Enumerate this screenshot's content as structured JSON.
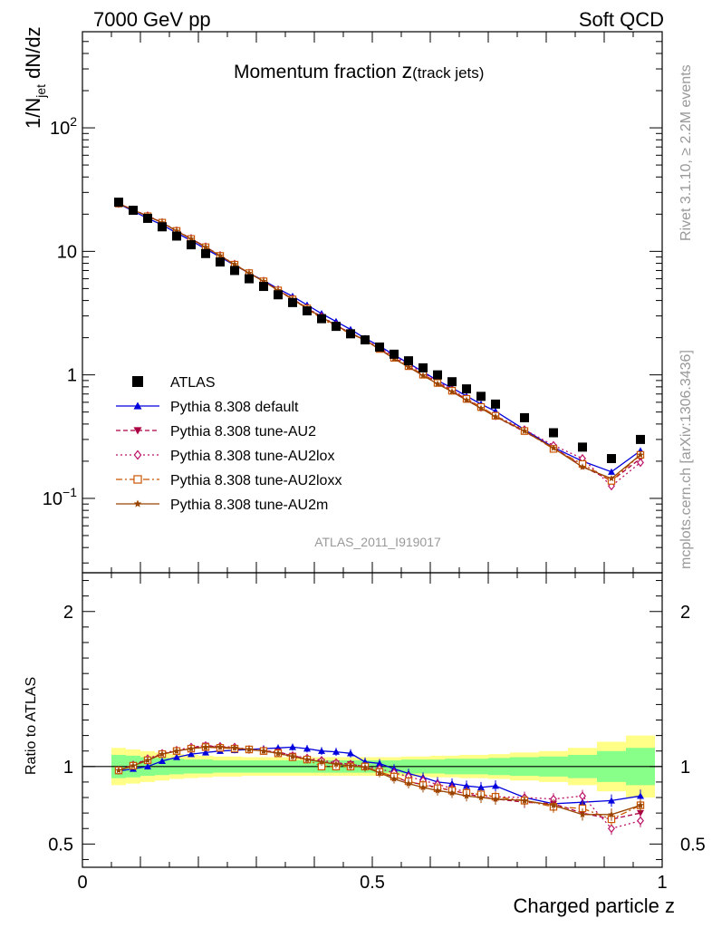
{
  "header": {
    "left": "7000 GeV pp",
    "right": "Soft QCD"
  },
  "side_texts": {
    "rivet": "Rivet 3.1.10, ≥ 2.2M events",
    "mcplots": "mcplots.cern.ch [arXiv:1306.3436]"
  },
  "chart_data": {
    "type": "line",
    "title_main": "Momentum fraction ",
    "title_z": "z",
    "title_sub": "(track jets)",
    "analysis_label": "ATLAS_2011_I919017",
    "ylabel_top": "1/N_jet dN/dz",
    "ylabel_bottom": "Ratio to ATLAS",
    "xlabel": "Charged particle z",
    "xlim": [
      0,
      1
    ],
    "ylim_top": [
      0.025,
      600
    ],
    "ylim_bottom": [
      0.35,
      2.25
    ],
    "log_y_top": true,
    "x_ticks": [
      {
        "v": 0,
        "label": "0"
      },
      {
        "v": 0.5,
        "label": "0.5"
      },
      {
        "v": 1,
        "label": "1"
      }
    ],
    "y_ticks_top": [
      {
        "v": 0.1,
        "base": "10",
        "exp": "−1"
      },
      {
        "v": 1,
        "base": "1",
        "exp": ""
      },
      {
        "v": 10,
        "base": "10",
        "exp": ""
      },
      {
        "v": 100,
        "base": "10",
        "exp": "2"
      }
    ],
    "y_ticks_bottom": [
      {
        "v": 0.5,
        "label": "0.5"
      },
      {
        "v": 1,
        "label": "1"
      },
      {
        "v": 2,
        "label": "2"
      }
    ],
    "x": [
      0.0625,
      0.0875,
      0.1125,
      0.1375,
      0.1625,
      0.1875,
      0.2125,
      0.2375,
      0.2625,
      0.2875,
      0.3125,
      0.3375,
      0.3625,
      0.3875,
      0.4125,
      0.4375,
      0.4625,
      0.4875,
      0.5125,
      0.5375,
      0.5625,
      0.5875,
      0.6125,
      0.6375,
      0.6625,
      0.6875,
      0.7125,
      0.7625,
      0.8125,
      0.8625,
      0.9125,
      0.9625
    ],
    "data": {
      "name": "ATLAS",
      "values": [
        25,
        21.5,
        18.5,
        15.8,
        13.3,
        11.3,
        9.6,
        8.2,
        7.0,
        6.0,
        5.2,
        4.45,
        3.85,
        3.3,
        2.85,
        2.47,
        2.15,
        1.92,
        1.68,
        1.47,
        1.3,
        1.14,
        1.0,
        0.88,
        0.77,
        0.67,
        0.58,
        0.45,
        0.34,
        0.26,
        0.21,
        0.3
      ],
      "band_inner": [
        0.075,
        0.07,
        0.06,
        0.055,
        0.05,
        0.045,
        0.045,
        0.04,
        0.04,
        0.04,
        0.04,
        0.04,
        0.04,
        0.04,
        0.04,
        0.04,
        0.04,
        0.04,
        0.04,
        0.04,
        0.045,
        0.045,
        0.045,
        0.05,
        0.05,
        0.05,
        0.055,
        0.06,
        0.065,
        0.075,
        0.1,
        0.12
      ],
      "band_outer": [
        0.12,
        0.11,
        0.1,
        0.09,
        0.08,
        0.075,
        0.07,
        0.065,
        0.065,
        0.06,
        0.06,
        0.06,
        0.06,
        0.06,
        0.06,
        0.06,
        0.06,
        0.06,
        0.06,
        0.06,
        0.065,
        0.065,
        0.07,
        0.07,
        0.075,
        0.075,
        0.08,
        0.09,
        0.1,
        0.12,
        0.16,
        0.2
      ]
    },
    "series": [
      {
        "name": "Pythia 8.308 default",
        "color": "#0000dd",
        "dash": "",
        "marker": "triangle",
        "ratio": [
          0.97,
          0.985,
          1.0,
          1.035,
          1.06,
          1.08,
          1.09,
          1.1,
          1.105,
          1.11,
          1.115,
          1.12,
          1.125,
          1.115,
          1.1,
          1.095,
          1.085,
          1.03,
          1.02,
          0.985,
          0.955,
          0.93,
          0.9,
          0.89,
          0.875,
          0.865,
          0.875,
          0.8,
          0.76,
          0.77,
          0.78,
          0.81
        ]
      },
      {
        "name": "Pythia 8.308 tune-AU2",
        "color": "#aa0044",
        "dash": "5,3",
        "marker": "triangledown",
        "ratio": [
          0.975,
          1.01,
          1.045,
          1.08,
          1.1,
          1.12,
          1.135,
          1.125,
          1.115,
          1.11,
          1.1,
          1.095,
          1.07,
          1.05,
          1.03,
          1.02,
          1.015,
          1.0,
          0.96,
          0.935,
          0.9,
          0.885,
          0.865,
          0.845,
          0.825,
          0.805,
          0.79,
          0.77,
          0.76,
          0.7,
          0.66,
          0.7
        ]
      },
      {
        "name": "Pythia 8.308 tune-AU2lox",
        "color": "#bb1166",
        "dash": "2,3",
        "marker": "diamond",
        "ratio": [
          0.975,
          1.01,
          1.05,
          1.085,
          1.105,
          1.125,
          1.135,
          1.13,
          1.125,
          1.11,
          1.105,
          1.09,
          1.07,
          1.055,
          1.04,
          1.025,
          1.015,
          1.0,
          0.985,
          0.96,
          0.935,
          0.91,
          0.885,
          0.86,
          0.835,
          0.815,
          0.805,
          0.8,
          0.79,
          0.81,
          0.6,
          0.65
        ]
      },
      {
        "name": "Pythia 8.308 tune-AU2loxx",
        "color": "#cc5500",
        "dash": "7,3,2,3",
        "marker": "square",
        "ratio": [
          0.975,
          1.005,
          1.04,
          1.08,
          1.1,
          1.115,
          1.125,
          1.12,
          1.115,
          1.11,
          1.1,
          1.085,
          1.06,
          1.045,
          1.0,
          1.0,
          1.0,
          1.0,
          0.965,
          0.935,
          0.905,
          0.88,
          0.86,
          0.845,
          0.83,
          0.82,
          0.805,
          0.78,
          0.74,
          0.73,
          0.66,
          0.75
        ]
      },
      {
        "name": "Pythia 8.308 tune-AU2m",
        "color": "#994400",
        "dash": "",
        "marker": "star",
        "ratio": [
          0.975,
          1.005,
          1.04,
          1.08,
          1.1,
          1.115,
          1.125,
          1.125,
          1.12,
          1.11,
          1.1,
          1.085,
          1.065,
          1.045,
          1.03,
          1.015,
          1.005,
          0.995,
          0.96,
          0.92,
          0.89,
          0.865,
          0.845,
          0.83,
          0.81,
          0.8,
          0.79,
          0.78,
          0.75,
          0.69,
          0.69,
          0.75
        ]
      }
    ]
  }
}
